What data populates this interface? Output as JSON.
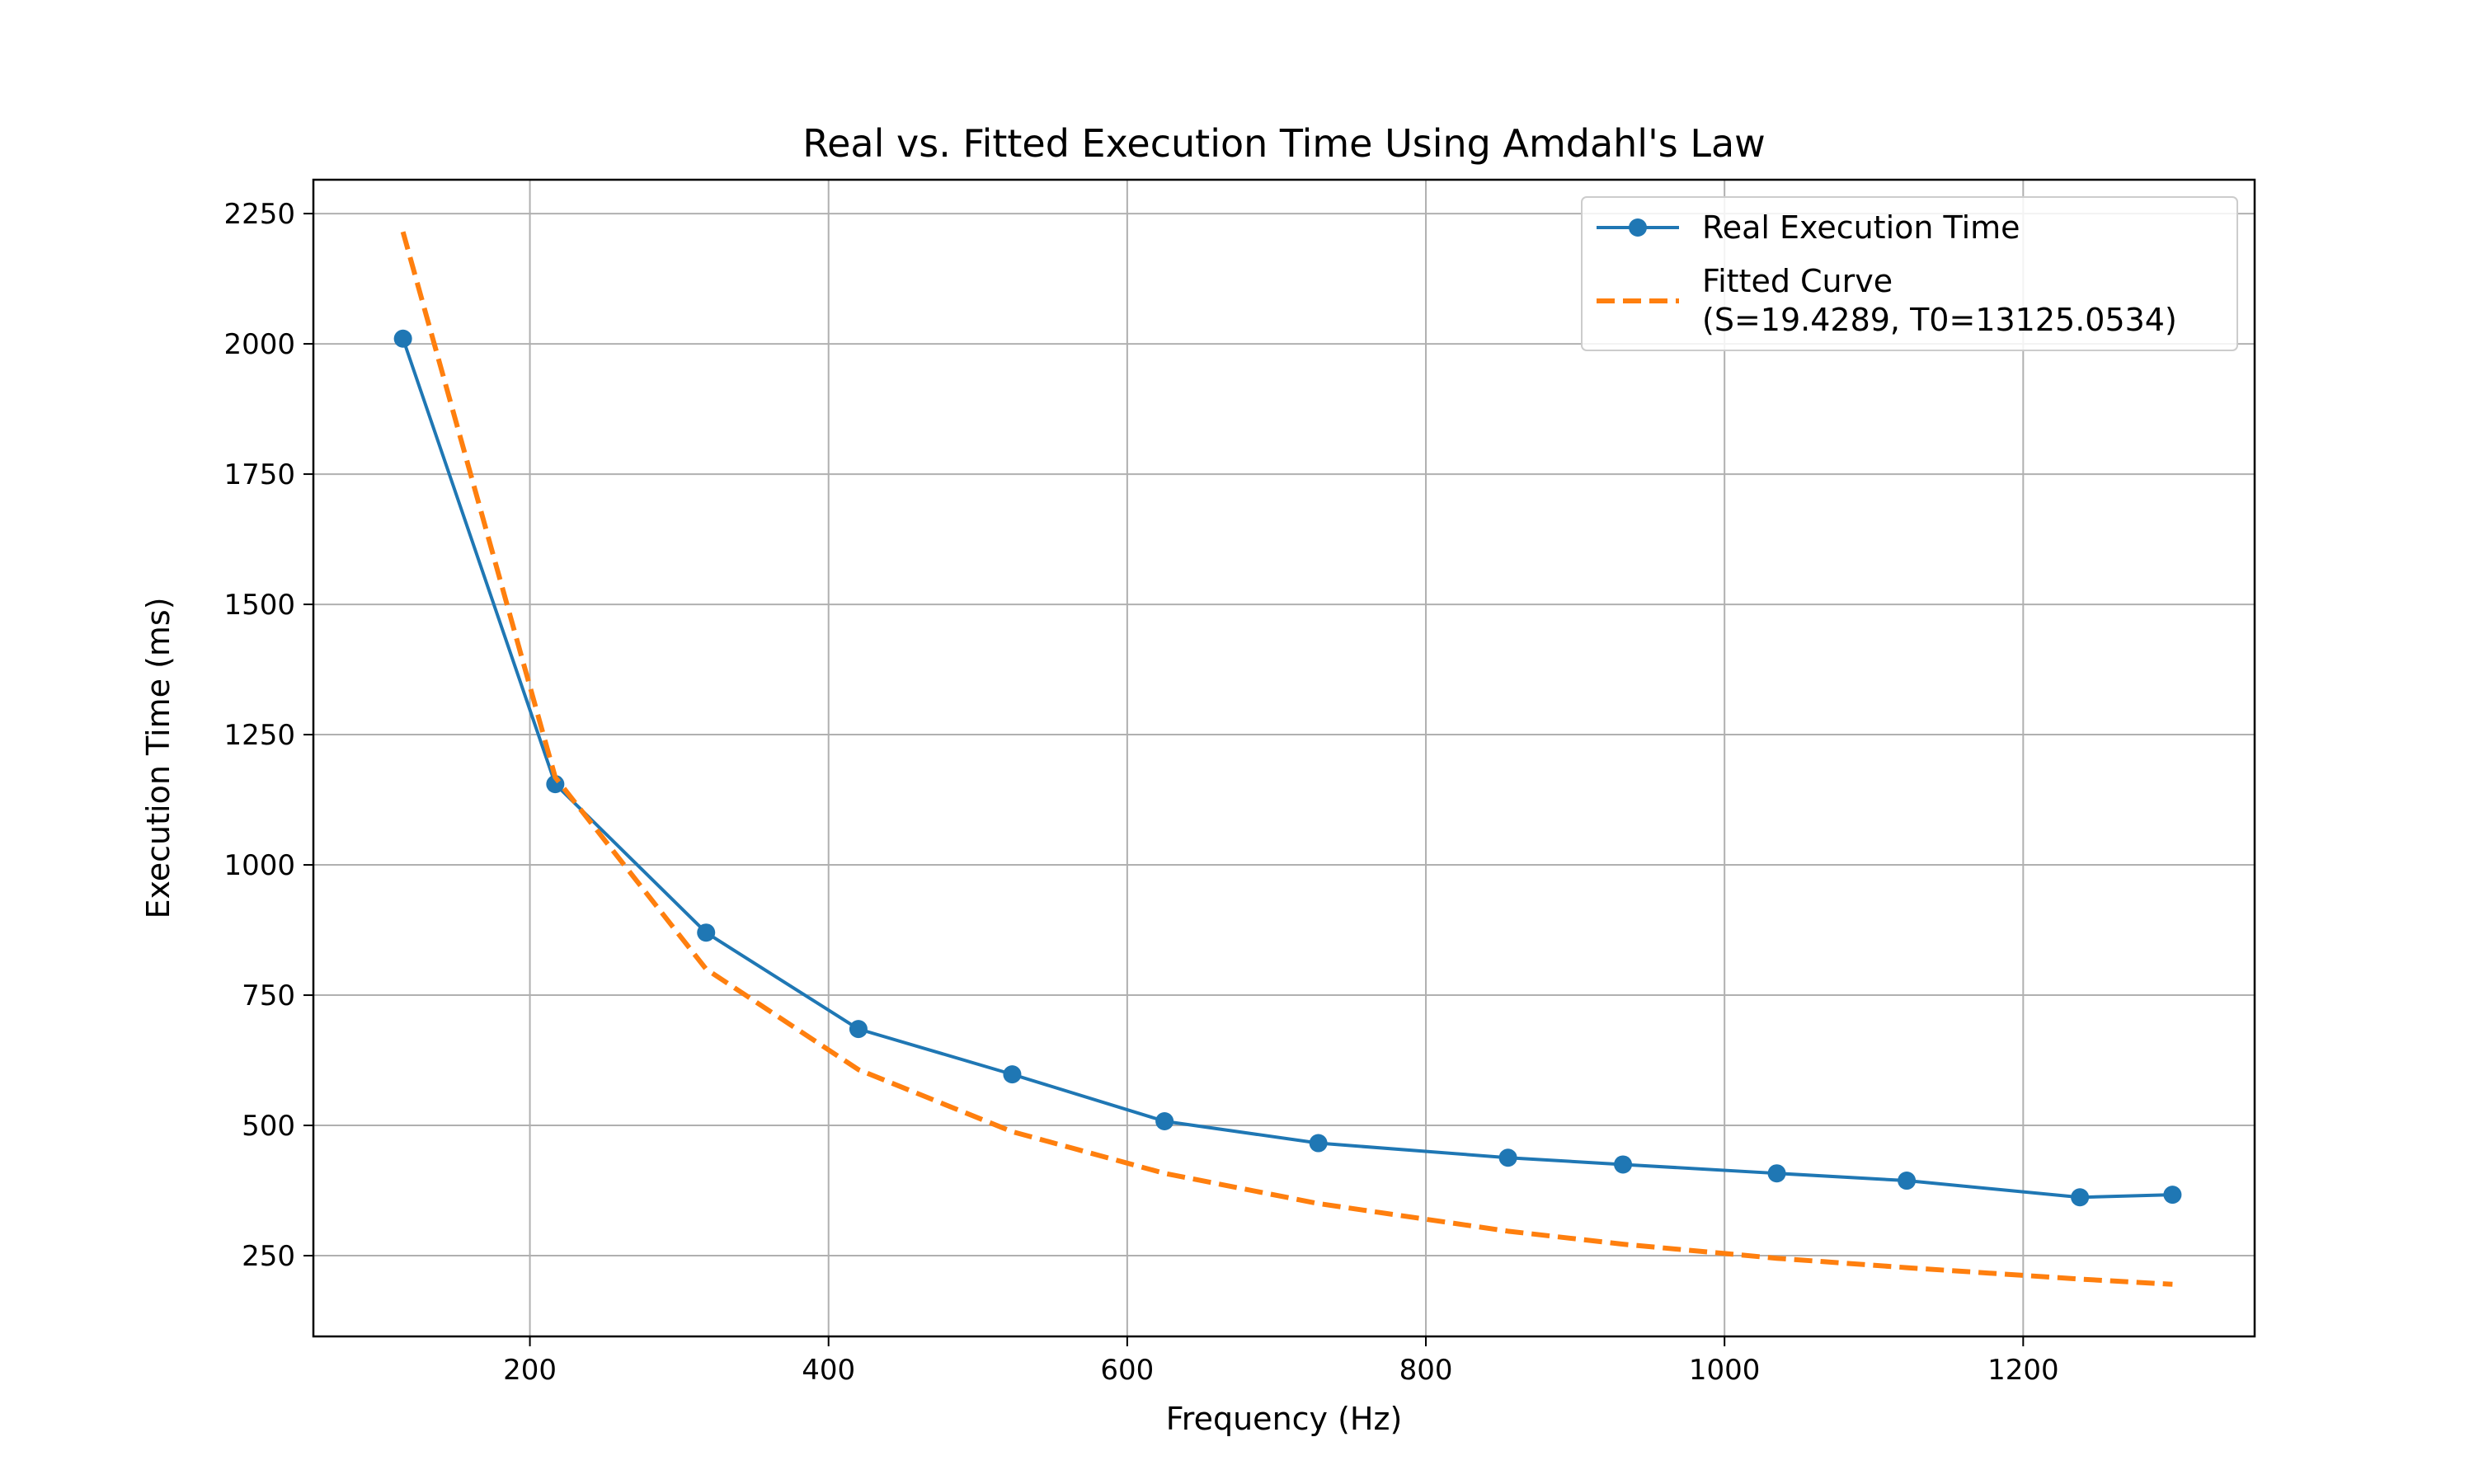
{
  "chart_data": {
    "type": "line",
    "title": "Real vs. Fitted Execution Time Using Amdahl's Law",
    "xlabel": "Frequency (Hz)",
    "ylabel": "Execution Time (ms)",
    "xlim": [
      55,
      1355
    ],
    "ylim": [
      95,
      2315
    ],
    "xticks": [
      200,
      400,
      600,
      800,
      1000,
      1200
    ],
    "yticks": [
      250,
      500,
      750,
      1000,
      1250,
      1500,
      1750,
      2000,
      2250
    ],
    "grid": true,
    "legend_position": "top-right",
    "series": [
      {
        "name": "Real Execution Time",
        "color": "#1f77b4",
        "style": "solid-marker",
        "x": [
          115,
          217,
          318,
          420,
          523,
          625,
          728,
          855,
          932,
          1035,
          1122,
          1238,
          1300
        ],
        "y": [
          2010,
          1155,
          870,
          685,
          598,
          508,
          466,
          438,
          425,
          408,
          394,
          362,
          367
        ]
      },
      {
        "name_lines": [
          "Fitted Curve",
          "(S=19.4289, T0=13125.0534)"
        ],
        "color": "#ff7f0e",
        "style": "dashed",
        "x": [
          115,
          217,
          318,
          420,
          523,
          625,
          728,
          855,
          932,
          1035,
          1122,
          1238,
          1300
        ],
        "y": [
          2215,
          1168,
          800,
          607,
          488,
          408,
          350,
          297,
          272,
          245,
          227,
          205,
          195
        ]
      }
    ]
  }
}
